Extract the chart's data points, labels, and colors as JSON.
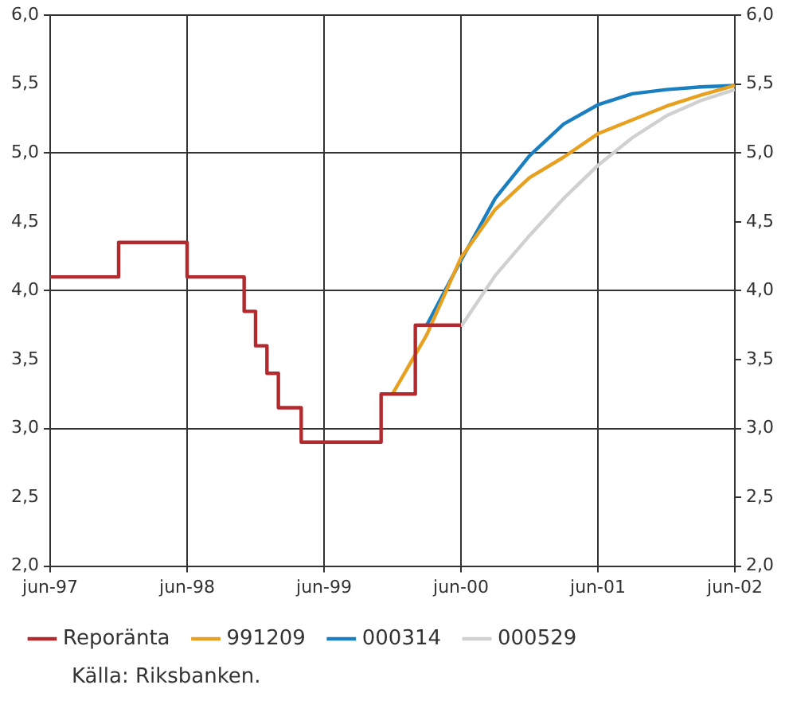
{
  "chart_data": {
    "type": "line",
    "ylim": [
      2,
      6
    ],
    "yticks": [
      {
        "value": 2,
        "label": "2,0"
      },
      {
        "value": 2.5,
        "label": "2,5"
      },
      {
        "value": 3,
        "label": "3,0"
      },
      {
        "value": 3.5,
        "label": "3,5"
      },
      {
        "value": 4,
        "label": "4,0"
      },
      {
        "value": 4.5,
        "label": "4,5"
      },
      {
        "value": 5,
        "label": "5,0"
      },
      {
        "value": 5.5,
        "label": "5,5"
      },
      {
        "value": 6,
        "label": "6,0"
      }
    ],
    "y2lim": [
      2,
      6
    ],
    "y2ticks": [
      {
        "value": 2,
        "label": "2,0"
      },
      {
        "value": 2.5,
        "label": "2,5"
      },
      {
        "value": 3,
        "label": "3,0"
      },
      {
        "value": 3.5,
        "label": "3,5"
      },
      {
        "value": 4,
        "label": "4,0"
      },
      {
        "value": 4.5,
        "label": "4,5"
      },
      {
        "value": 5,
        "label": "5,0"
      },
      {
        "value": 5.5,
        "label": "5,5"
      },
      {
        "value": 6,
        "label": "6,0"
      }
    ],
    "xlim": [
      "1997-06",
      "2002-06"
    ],
    "xticks": [
      {
        "value": "1997-06",
        "label": "jun-97"
      },
      {
        "value": "1998-06",
        "label": "jun-98"
      },
      {
        "value": "1999-06",
        "label": "jun-99"
      },
      {
        "value": "2000-06",
        "label": "jun-00"
      },
      {
        "value": "2001-06",
        "label": "jun-01"
      },
      {
        "value": "2002-06",
        "label": "jun-02"
      }
    ],
    "grid": true,
    "legend": "bottom",
    "marker": "none",
    "series": [
      {
        "name": "Reporänta",
        "type": "step",
        "color": "#b22a2e",
        "x": [
          "1997-06",
          "1997-12",
          "1998-06",
          "1998-11",
          "1998-12",
          "1999-01",
          "1999-02",
          "1999-04",
          "1999-11",
          "2000-02",
          "2000-06"
        ],
        "values": [
          4.1,
          4.35,
          4.1,
          3.85,
          3.6,
          3.4,
          3.15,
          2.9,
          3.25,
          3.75,
          3.75
        ]
      },
      {
        "name": "991209",
        "color": "#e8a020",
        "x": [
          "1999-12",
          "2000-03",
          "2000-06",
          "2000-09",
          "2000-12",
          "2001-03",
          "2001-06",
          "2001-09",
          "2001-12",
          "2002-03",
          "2002-06"
        ],
        "values": [
          3.25,
          3.68,
          4.24,
          4.59,
          4.82,
          4.97,
          5.14,
          5.24,
          5.34,
          5.42,
          5.49
        ]
      },
      {
        "name": "000314",
        "color": "#1a7fc1",
        "x": [
          "2000-03",
          "2000-06",
          "2000-09",
          "2000-12",
          "2001-03",
          "2001-06",
          "2001-09",
          "2001-12",
          "2002-03",
          "2002-06"
        ],
        "values": [
          3.75,
          4.22,
          4.67,
          4.98,
          5.21,
          5.35,
          5.43,
          5.46,
          5.48,
          5.49
        ]
      },
      {
        "name": "000529",
        "color": "#d0d0d0",
        "x": [
          "2000-06",
          "2000-09",
          "2000-12",
          "2001-03",
          "2001-06",
          "2001-09",
          "2001-12",
          "2002-03",
          "2002-06"
        ],
        "values": [
          3.74,
          4.11,
          4.4,
          4.67,
          4.91,
          5.11,
          5.27,
          5.38,
          5.46
        ]
      }
    ],
    "annotations": [
      "Källa: Riksbanken."
    ]
  }
}
